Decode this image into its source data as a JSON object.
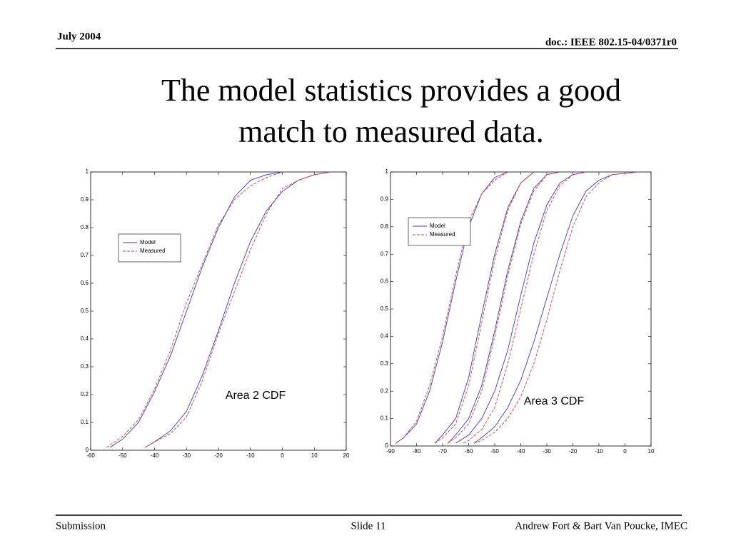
{
  "header": {
    "date": "July 2004",
    "doc": "doc.: IEEE 802.15-04/0371r0"
  },
  "title": [
    "The model statistics provides a good",
    "match to measured data."
  ],
  "chart_data": [
    {
      "type": "line",
      "annotation": "Area 2 CDF",
      "legend": "upper left",
      "xlim": [
        -60,
        20
      ],
      "ylim": [
        0,
        1
      ],
      "xticks": [
        -60,
        -50,
        -40,
        -30,
        -20,
        -10,
        0,
        10,
        20
      ],
      "yticks": [
        0,
        0.1,
        0.2,
        0.3,
        0.4,
        0.5,
        0.6,
        0.7,
        0.8,
        0.9,
        1
      ],
      "series": [
        {
          "name": "Model",
          "color": "#3a3ab8",
          "dashed": false,
          "curves": [
            {
              "x": [
                -54,
                -50,
                -45,
                -40,
                -35,
                -30,
                -25,
                -20,
                -15,
                -10,
                -5,
                0
              ],
              "values": [
                0.01,
                0.04,
                0.1,
                0.21,
                0.34,
                0.5,
                0.66,
                0.8,
                0.91,
                0.97,
                0.99,
                1
              ]
            },
            {
              "x": [
                -43,
                -40,
                -35,
                -30,
                -25,
                -20,
                -15,
                -10,
                -5,
                0,
                5,
                10,
                15
              ],
              "values": [
                0.01,
                0.03,
                0.07,
                0.14,
                0.27,
                0.43,
                0.6,
                0.75,
                0.86,
                0.93,
                0.97,
                0.99,
                1
              ]
            }
          ]
        },
        {
          "name": "Measured",
          "color": "#d83c3c",
          "dashed": true,
          "curves": [
            {
              "x": [
                -55,
                -50,
                -45,
                -40,
                -35,
                -30,
                -25,
                -20,
                -15,
                -10,
                -5,
                0
              ],
              "values": [
                0.01,
                0.05,
                0.11,
                0.22,
                0.36,
                0.53,
                0.67,
                0.81,
                0.9,
                0.95,
                0.98,
                1
              ]
            },
            {
              "x": [
                -43,
                -40,
                -35,
                -30,
                -25,
                -20,
                -15,
                -10,
                -5,
                0,
                5,
                10,
                15
              ],
              "values": [
                0.01,
                0.03,
                0.06,
                0.12,
                0.25,
                0.42,
                0.57,
                0.72,
                0.85,
                0.94,
                0.97,
                0.99,
                1
              ]
            }
          ]
        }
      ]
    },
    {
      "type": "line",
      "annotation": "Area 3 CDF",
      "legend": "upper left",
      "xlim": [
        -90,
        10
      ],
      "ylim": [
        0,
        1
      ],
      "xticks": [
        -90,
        -80,
        -70,
        -60,
        -50,
        -40,
        -30,
        -20,
        -10,
        0,
        10
      ],
      "yticks": [
        0,
        0.1,
        0.2,
        0.3,
        0.4,
        0.5,
        0.6,
        0.7,
        0.8,
        0.9,
        1
      ],
      "series": [
        {
          "name": "Model",
          "color": "#3a3ab8",
          "dashed": false,
          "curves": [
            {
              "x": [
                -88,
                -85,
                -80,
                -75,
                -70,
                -65,
                -60,
                -55,
                -50,
                -45
              ],
              "values": [
                0.01,
                0.03,
                0.08,
                0.2,
                0.38,
                0.6,
                0.8,
                0.92,
                0.98,
                1
              ]
            },
            {
              "x": [
                -73,
                -70,
                -65,
                -60,
                -55,
                -50,
                -45,
                -40,
                -35
              ],
              "values": [
                0.01,
                0.04,
                0.1,
                0.25,
                0.48,
                0.7,
                0.87,
                0.96,
                1
              ]
            },
            {
              "x": [
                -68,
                -65,
                -60,
                -55,
                -50,
                -45,
                -40,
                -35,
                -30,
                -25
              ],
              "values": [
                0.01,
                0.04,
                0.1,
                0.22,
                0.42,
                0.64,
                0.82,
                0.94,
                0.99,
                1
              ]
            },
            {
              "x": [
                -65,
                -60,
                -55,
                -50,
                -45,
                -40,
                -35,
                -30,
                -25,
                -20,
                -15
              ],
              "values": [
                0.01,
                0.04,
                0.1,
                0.2,
                0.35,
                0.55,
                0.74,
                0.88,
                0.96,
                0.99,
                1
              ]
            },
            {
              "x": [
                -58,
                -55,
                -50,
                -45,
                -40,
                -35,
                -30,
                -25,
                -20,
                -15,
                -10,
                -5,
                5
              ],
              "values": [
                0.01,
                0.03,
                0.07,
                0.14,
                0.24,
                0.38,
                0.54,
                0.7,
                0.84,
                0.93,
                0.97,
                0.99,
                1
              ]
            }
          ]
        },
        {
          "name": "Measured",
          "color": "#d83c3c",
          "dashed": true,
          "curves": [
            {
              "x": [
                -88,
                -85,
                -80,
                -75,
                -70,
                -65,
                -60,
                -55,
                -50,
                -45
              ],
              "values": [
                0.01,
                0.03,
                0.09,
                0.22,
                0.4,
                0.62,
                0.82,
                0.92,
                0.97,
                1
              ]
            },
            {
              "x": [
                -73,
                -70,
                -65,
                -60,
                -55,
                -50,
                -45,
                -40,
                -35
              ],
              "values": [
                0.01,
                0.03,
                0.08,
                0.22,
                0.45,
                0.68,
                0.86,
                0.96,
                1
              ]
            },
            {
              "x": [
                -68,
                -65,
                -60,
                -55,
                -50,
                -45,
                -40,
                -35,
                -30,
                -25
              ],
              "values": [
                0.01,
                0.03,
                0.08,
                0.2,
                0.4,
                0.62,
                0.81,
                0.93,
                0.99,
                1
              ]
            },
            {
              "x": [
                -62,
                -60,
                -55,
                -50,
                -45,
                -40,
                -35,
                -30,
                -25,
                -20,
                -15
              ],
              "values": [
                0.01,
                0.02,
                0.06,
                0.14,
                0.3,
                0.5,
                0.7,
                0.86,
                0.95,
                0.99,
                1
              ]
            },
            {
              "x": [
                -58,
                -55,
                -50,
                -45,
                -40,
                -35,
                -30,
                -25,
                -20,
                -15,
                -10,
                -5,
                5
              ],
              "values": [
                0.01,
                0.02,
                0.05,
                0.1,
                0.18,
                0.3,
                0.46,
                0.64,
                0.8,
                0.91,
                0.96,
                0.99,
                1
              ]
            }
          ]
        }
      ]
    }
  ],
  "footer": {
    "left": "Submission",
    "center": "Slide 11",
    "right": "Andrew Fort & Bart Van Poucke, IMEC"
  }
}
